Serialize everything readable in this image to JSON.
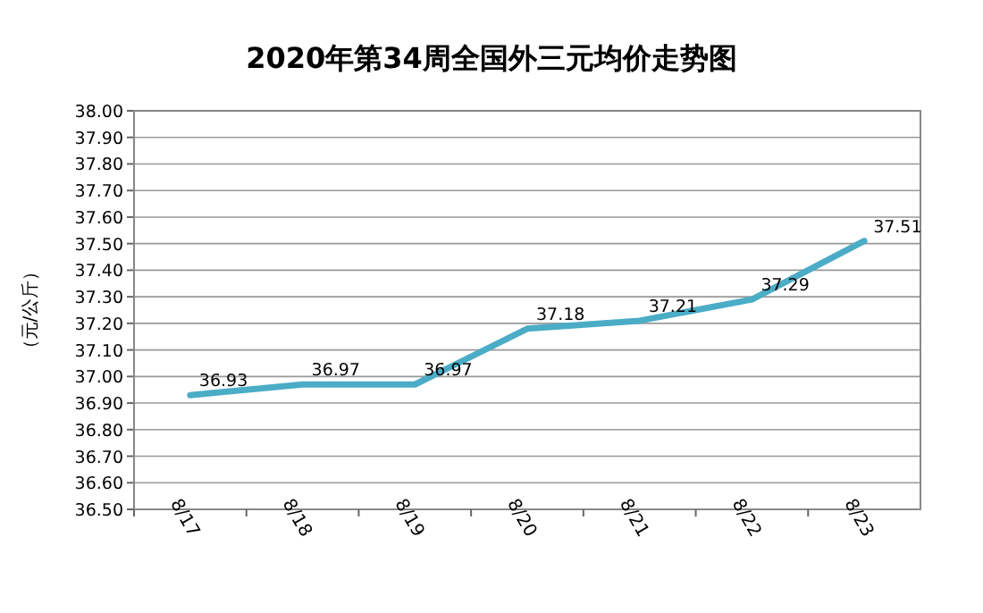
{
  "chart_data": {
    "type": "line",
    "title": "2020年第34周全国外三元均价走势图",
    "ylabel": "（元/公斤）",
    "categories": [
      "8/17",
      "8/18",
      "8/19",
      "8/20",
      "8/21",
      "8/22",
      "8/23"
    ],
    "series": [
      {
        "color": "#4bacc6",
        "values": [
          36.93,
          36.97,
          36.97,
          37.18,
          37.21,
          37.29,
          37.51
        ]
      }
    ],
    "ylim": [
      36.5,
      38.0
    ],
    "yticks": [
      {
        "value": 36.5,
        "label": "36.50"
      },
      {
        "value": 36.6,
        "label": "36.60"
      },
      {
        "value": 36.7,
        "label": "36.70"
      },
      {
        "value": 36.8,
        "label": "36.80"
      },
      {
        "value": 36.9,
        "label": "36.90"
      },
      {
        "value": 37.0,
        "label": "37.00"
      },
      {
        "value": 37.1,
        "label": "37.10"
      },
      {
        "value": 37.2,
        "label": "37.20"
      },
      {
        "value": 37.3,
        "label": "37.30"
      },
      {
        "value": 37.4,
        "label": "37.40"
      },
      {
        "value": 37.5,
        "label": "37.50"
      },
      {
        "value": 37.6,
        "label": "37.60"
      },
      {
        "value": 37.7,
        "label": "37.70"
      },
      {
        "value": 37.8,
        "label": "37.80"
      },
      {
        "value": 37.9,
        "label": "37.90"
      },
      {
        "value": 38.0,
        "label": "38.00"
      }
    ],
    "grid": "y",
    "data_labels": true,
    "marker": "none",
    "line_style": "solid"
  }
}
